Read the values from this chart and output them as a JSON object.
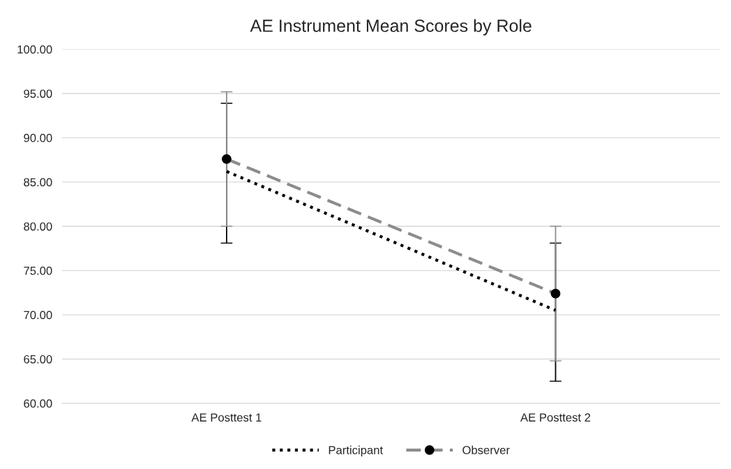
{
  "chart_data": {
    "type": "line",
    "title": "AE Instrument Mean Scores by Role",
    "categories": [
      "AE Posttest 1",
      "AE Posttest 2"
    ],
    "series": [
      {
        "name": "Participant",
        "color": "#000000",
        "values": [
          86.2,
          70.5
        ],
        "errors": [
          [
            78.1,
            93.9
          ],
          [
            62.5,
            78.1
          ]
        ],
        "line_style": "dotted",
        "marker": "none"
      },
      {
        "name": "Observer",
        "color": "#8c8c8c",
        "values": [
          87.6,
          72.4
        ],
        "errors": [
          [
            80.0,
            95.2
          ],
          [
            64.8,
            80.0
          ]
        ],
        "line_style": "dashed",
        "marker": "circle"
      }
    ],
    "ylim": [
      60,
      100
    ],
    "yticks": [
      {
        "value": 60,
        "label": "60.00"
      },
      {
        "value": 65,
        "label": "65.00"
      },
      {
        "value": 70,
        "label": "70.00"
      },
      {
        "value": 75,
        "label": "75.00"
      },
      {
        "value": 80,
        "label": "80.00"
      },
      {
        "value": 85,
        "label": "85.00"
      },
      {
        "value": 90,
        "label": "90.00"
      },
      {
        "value": 95,
        "label": "95.00"
      },
      {
        "value": 100,
        "label": "100.00"
      }
    ],
    "grid": "y",
    "legend": "bottom"
  }
}
